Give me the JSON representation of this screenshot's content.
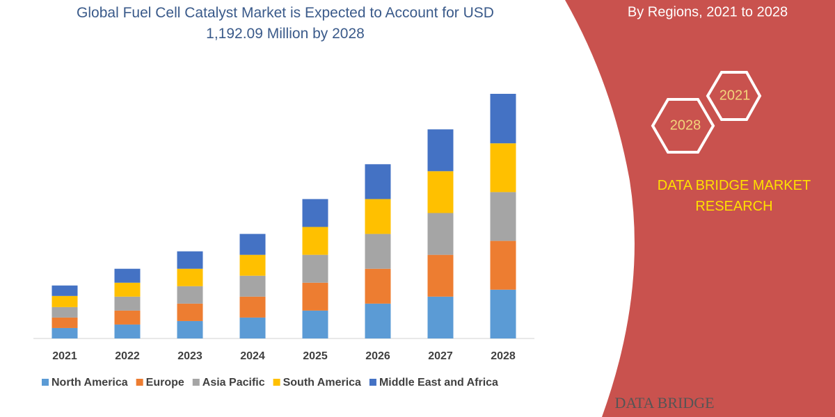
{
  "chart_data": {
    "type": "stacked_bar",
    "title": "Global Fuel Cell Catalyst Market is Expected to Account for USD 1,192.09 Million by 2028",
    "subtitle": "By Regions, 2021 to 2028",
    "categories": [
      "2021",
      "2022",
      "2023",
      "2024",
      "2025",
      "2026",
      "2027",
      "2028"
    ],
    "series": [
      {
        "name": "North America",
        "color": "#5b9bd5",
        "values": [
          15,
          20,
          25,
          30,
          40,
          50,
          60,
          70
        ]
      },
      {
        "name": "Europe",
        "color": "#ed7d31",
        "values": [
          15,
          20,
          25,
          30,
          40,
          50,
          60,
          70
        ]
      },
      {
        "name": "Asia Pacific",
        "color": "#a5a5a5",
        "values": [
          15,
          20,
          25,
          30,
          40,
          50,
          60,
          70
        ]
      },
      {
        "name": "South America",
        "color": "#ffc000",
        "values": [
          16,
          20,
          25,
          30,
          40,
          50,
          60,
          70
        ]
      },
      {
        "name": "Middle East and Africa",
        "color": "#4472c4",
        "values": [
          15,
          20,
          25,
          30,
          40,
          50,
          60,
          71
        ]
      }
    ],
    "legend": "bottom"
  },
  "panel": {
    "hex_labels": [
      "2021",
      "2028"
    ],
    "brand": "DATA BRIDGE MARKET RESEARCH",
    "logo": "DATA BRIDGE"
  }
}
